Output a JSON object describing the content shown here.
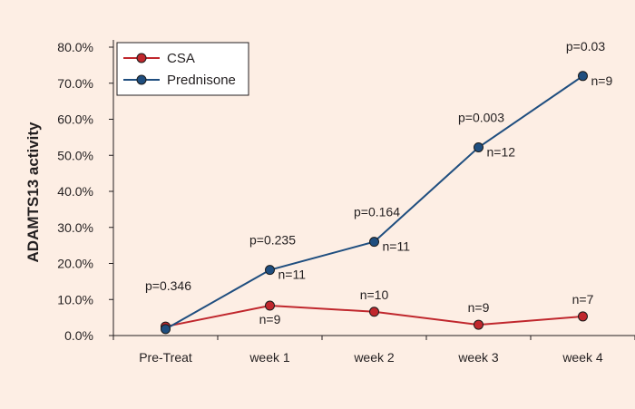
{
  "chart_data": {
    "type": "line",
    "ylabel": "ADAMTS13 activity",
    "xlabel": "",
    "categories": [
      "Pre-Treat",
      "week 1",
      "week 2",
      "week 3",
      "week 4"
    ],
    "ylim": [
      0,
      80
    ],
    "yticks": [
      "0.0%",
      "10.0%",
      "20.0%",
      "30.0%",
      "40.0%",
      "50.0%",
      "60.0%",
      "70.0%",
      "80.0%"
    ],
    "series": [
      {
        "name": "CSA",
        "color": "#c0272d",
        "values": [
          2.5,
          8.3,
          6.6,
          3.0,
          5.3
        ],
        "n_labels": [
          "",
          "n=9",
          "n=10",
          "n=9",
          "n=7"
        ]
      },
      {
        "name": "Prednisone",
        "color": "#1f4e7f",
        "values": [
          1.8,
          18.2,
          26.0,
          52.2,
          72.0
        ],
        "n_labels": [
          "",
          "n=11",
          "n=11",
          "n=12",
          "n=9"
        ]
      }
    ],
    "p_values": [
      "p=0.346",
      "p=0.235",
      "p=0.164",
      "p=0.003",
      "p=0.03"
    ],
    "legend_position": "top-left",
    "grid": false
  }
}
